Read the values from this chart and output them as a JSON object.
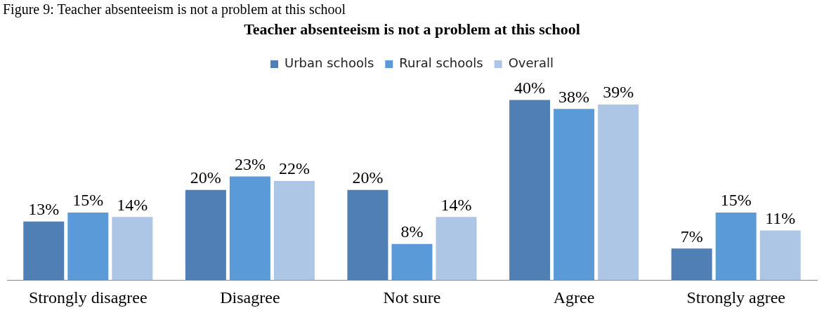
{
  "chart_data": {
    "type": "bar",
    "title": "Teacher absenteeism is not a problem at this school",
    "annotations": [
      "Figure 9: Teacher absenteeism is not a problem at this school"
    ],
    "categories": [
      "Strongly disagree",
      "Disagree",
      "Not sure",
      "Agree",
      "Strongly agree"
    ],
    "series": [
      {
        "name": "Urban schools",
        "color": "#4f7fb5",
        "values": [
          13,
          20,
          20,
          40,
          7
        ],
        "value_labels": [
          "13%",
          "20%",
          "20%",
          "40%",
          "7%"
        ]
      },
      {
        "name": "Rural schools",
        "color": "#5a9ad8",
        "values": [
          15,
          23,
          8,
          38,
          15
        ],
        "value_labels": [
          "15%",
          "23%",
          "8%",
          "38%",
          "15%"
        ]
      },
      {
        "name": "Overall",
        "color": "#adc6e6",
        "values": [
          14,
          22,
          14,
          39,
          11
        ],
        "value_labels": [
          "14%",
          "22%",
          "14%",
          "39%",
          "11%"
        ]
      }
    ],
    "grid": false,
    "legend": "top",
    "tick_labels": "x"
  }
}
